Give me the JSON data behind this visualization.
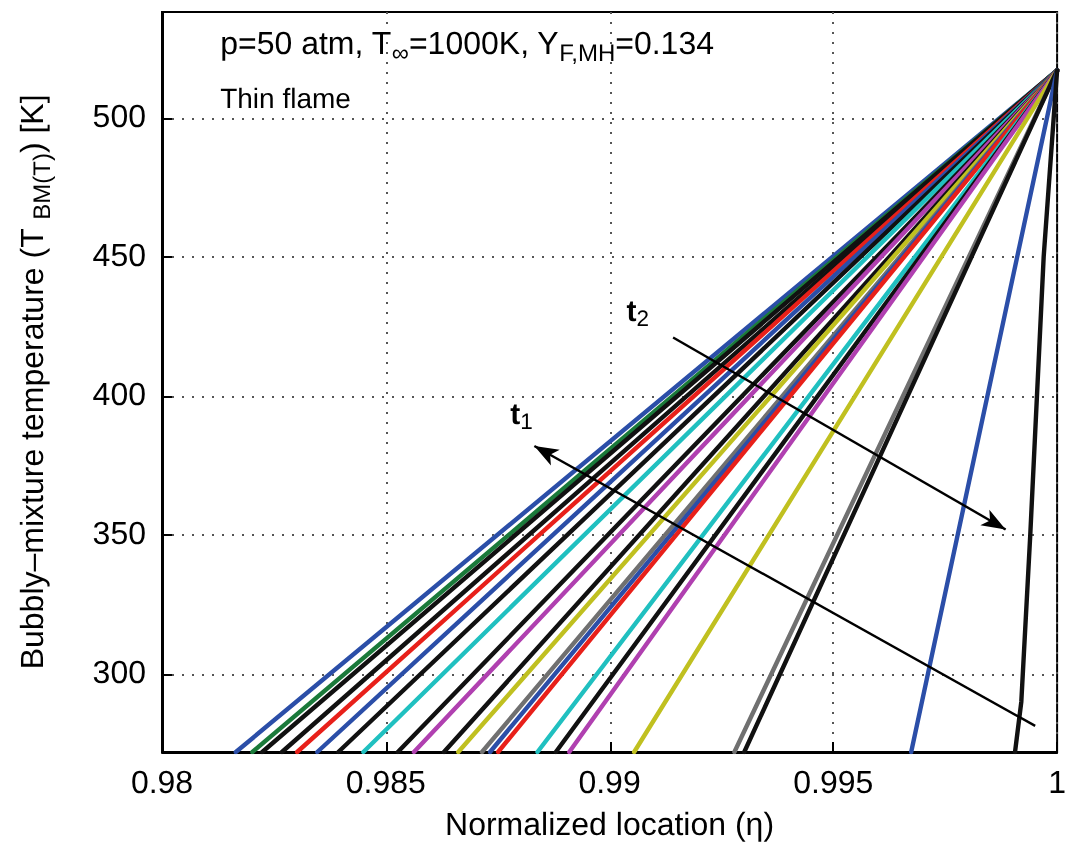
{
  "chart_data": {
    "type": "line",
    "xlabel": "Normalized location (η)",
    "ylabel": "Bubbly–mixture temperature (T $_{BM(T)}$) [K]",
    "annotations": [
      "p=50 atm, T$_{∞}$=1000K, Y$_{F,MH}$=0.134",
      "Thin flame",
      "t$_{1}$",
      "t$_{2}$"
    ],
    "xlim": [
      0.98,
      1
    ],
    "xticks": [
      0.98,
      0.985,
      0.99,
      0.995,
      1
    ],
    "ylim": [
      272,
      538
    ],
    "yticks": [
      300,
      350,
      400,
      450,
      500
    ],
    "grid": true,
    "marker": "none",
    "line_style": "solid",
    "series": [
      {
        "color": "#2b4ea8",
        "x": [
          0.98165,
          1
        ],
        "values": [
          272,
          517
        ]
      },
      {
        "color": "#1a7a3a",
        "x": [
          0.98202,
          1
        ],
        "values": [
          272,
          517
        ]
      },
      {
        "color": "#111111",
        "x": [
          0.98224,
          1
        ],
        "values": [
          272,
          517
        ]
      },
      {
        "color": "#111111",
        "x": [
          0.98268,
          1
        ],
        "values": [
          272,
          517
        ]
      },
      {
        "color": "#e8201a",
        "x": [
          0.98302,
          1
        ],
        "values": [
          272,
          517
        ]
      },
      {
        "color": "#2b4ea8",
        "x": [
          0.98347,
          1
        ],
        "values": [
          272,
          517
        ]
      },
      {
        "color": "#111111",
        "x": [
          0.98394,
          1
        ],
        "values": [
          272,
          517
        ]
      },
      {
        "color": "#20c0c0",
        "x": [
          0.9845,
          1
        ],
        "values": [
          272,
          517
        ]
      },
      {
        "color": "#111111",
        "x": [
          0.98527,
          1
        ],
        "values": [
          272,
          517
        ]
      },
      {
        "color": "#b040b0",
        "x": [
          0.98563,
          1
        ],
        "values": [
          272,
          517
        ]
      },
      {
        "color": "#111111",
        "x": [
          0.9863,
          1
        ],
        "values": [
          272,
          517
        ]
      },
      {
        "color": "#c0c020",
        "x": [
          0.98662,
          1
        ],
        "values": [
          272,
          517
        ]
      },
      {
        "color": "#707070",
        "x": [
          0.98715,
          1
        ],
        "values": [
          272,
          517
        ]
      },
      {
        "color": "#2b4ea8",
        "x": [
          0.98733,
          1
        ],
        "values": [
          272,
          517
        ]
      },
      {
        "color": "#e8201a",
        "x": [
          0.98751,
          1
        ],
        "values": [
          272,
          517
        ]
      },
      {
        "color": "#20c0c0",
        "x": [
          0.98839,
          1
        ],
        "values": [
          272,
          517
        ]
      },
      {
        "color": "#111111",
        "x": [
          0.9888,
          1
        ],
        "values": [
          272,
          517
        ]
      },
      {
        "color": "#b040b0",
        "x": [
          0.9891,
          1
        ],
        "values": [
          272,
          517
        ]
      },
      {
        "color": "#c0c020",
        "x": [
          0.99055,
          1
        ],
        "values": [
          272,
          517
        ]
      },
      {
        "color": "#707070",
        "x": [
          0.99279,
          1
        ],
        "values": [
          272,
          517
        ]
      },
      {
        "color": "#111111",
        "x": [
          0.99301,
          1
        ],
        "values": [
          272,
          517
        ]
      },
      {
        "color": "#2b4ea8",
        "x": [
          0.99674,
          1
        ],
        "values": [
          272,
          517
        ]
      },
      {
        "color": "#111111",
        "x": [
          0.99906,
          0.9992,
          0.9994,
          0.99955,
          0.9997,
          1
        ],
        "values": [
          272,
          290,
          350,
          400,
          450,
          517
        ]
      }
    ]
  }
}
